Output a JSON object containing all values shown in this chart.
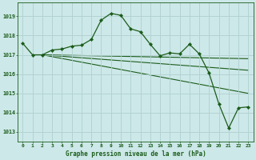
{
  "title": "Graphe pression niveau de la mer (hPa)",
  "bg_color": "#cde8e8",
  "grid_color": "#b0d0d0",
  "line_color": "#1a5c1a",
  "xlim": [
    -0.5,
    23.5
  ],
  "ylim": [
    1012.5,
    1019.7
  ],
  "yticks": [
    1013,
    1014,
    1015,
    1016,
    1017,
    1018,
    1019
  ],
  "xticks": [
    0,
    1,
    2,
    3,
    4,
    5,
    6,
    7,
    8,
    9,
    10,
    11,
    12,
    13,
    14,
    15,
    16,
    17,
    18,
    19,
    20,
    21,
    22,
    23
  ],
  "main_series": {
    "x": [
      0,
      1,
      2,
      3,
      4,
      5,
      6,
      7,
      8,
      9,
      10,
      11,
      12,
      13,
      14,
      15,
      16,
      17,
      18,
      19,
      20,
      21,
      22,
      23
    ],
    "y": [
      1017.6,
      1017.0,
      1017.0,
      1017.25,
      1017.3,
      1017.45,
      1017.5,
      1017.8,
      1018.8,
      1019.15,
      1019.05,
      1018.35,
      1018.2,
      1017.55,
      1016.95,
      1017.1,
      1017.05,
      1017.55,
      1017.05,
      1016.05,
      1014.45,
      1013.2,
      1014.25,
      1014.3
    ]
  },
  "trend_lines": [
    {
      "x": [
        2,
        23
      ],
      "y": [
        1017.0,
        1016.8
      ]
    },
    {
      "x": [
        2,
        23
      ],
      "y": [
        1017.0,
        1016.2
      ]
    },
    {
      "x": [
        2,
        23
      ],
      "y": [
        1017.0,
        1015.0
      ]
    }
  ]
}
